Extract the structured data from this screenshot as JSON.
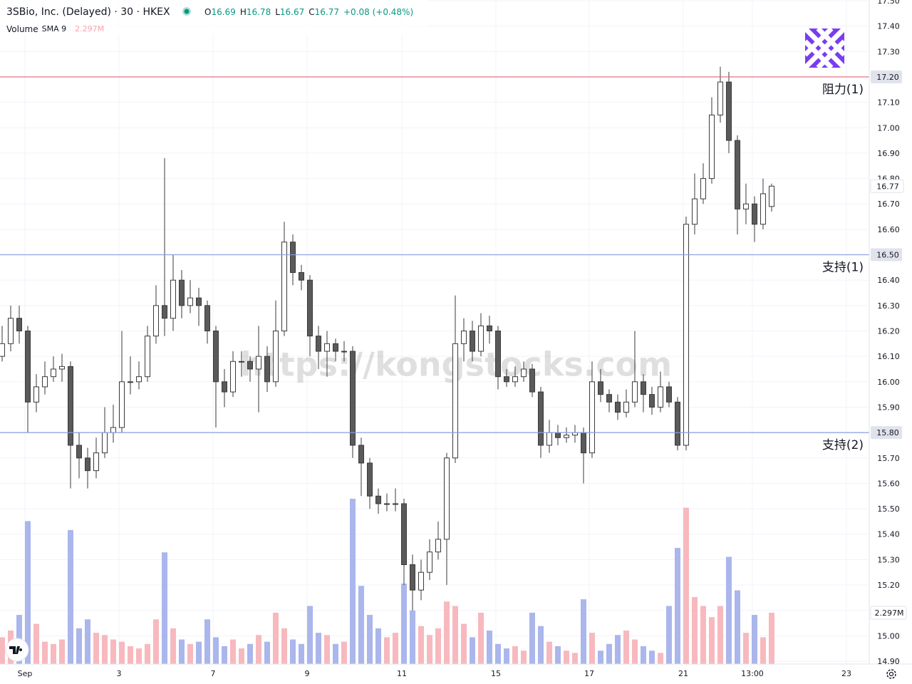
{
  "chart_data": {
    "type": "candlestick",
    "title": "3SBio, Inc. (Delayed) · 30 · HKEX",
    "ohlc_prefixes": [
      "O",
      "H",
      "L",
      "C"
    ],
    "change": "+0.08 (+0.48%)",
    "volume_title": "Volume",
    "volume_sma": "SMA 9",
    "volume_last": {
      "value": 2297000,
      "label": "2.297M"
    },
    "watermark": "https://kongstocks.com",
    "open": [
      16.1,
      16.15,
      16.25,
      16.2,
      15.92,
      15.98,
      16.02,
      16.05,
      16.06,
      15.75,
      15.7,
      15.65,
      15.72,
      15.8,
      15.82,
      16.0,
      16.0,
      16.02,
      16.18,
      16.3,
      16.25,
      16.4,
      16.3,
      16.33,
      16.3,
      16.2,
      16.0,
      15.96,
      16.08,
      16.08,
      16.05,
      16.1,
      16.0,
      16.2,
      16.55,
      16.43,
      16.4,
      16.18,
      16.12,
      16.15,
      16.12,
      16.12,
      15.75,
      15.68,
      15.55,
      15.52,
      15.52,
      15.52,
      15.28,
      15.18,
      15.25,
      15.33,
      15.38,
      15.7,
      16.15,
      16.2,
      16.12,
      16.22,
      16.2,
      16.02,
      16.0,
      16.02,
      16.05,
      15.96,
      15.75,
      15.8,
      15.78,
      15.79,
      15.8,
      15.72,
      16.0,
      15.95,
      15.92,
      15.88,
      15.92,
      16.0,
      15.95,
      15.9,
      15.98,
      15.92,
      15.75,
      16.62,
      16.72,
      16.8,
      17.05,
      17.18,
      16.95,
      16.68,
      16.7,
      16.62,
      16.69
    ],
    "high": [
      16.22,
      16.3,
      16.3,
      16.22,
      16.03,
      16.08,
      16.1,
      16.11,
      16.08,
      15.8,
      15.74,
      15.78,
      15.9,
      15.91,
      16.2,
      16.1,
      16.08,
      16.22,
      16.38,
      16.88,
      16.5,
      16.44,
      16.4,
      16.37,
      16.32,
      16.22,
      16.05,
      16.12,
      16.12,
      16.1,
      16.22,
      16.14,
      16.32,
      16.63,
      16.58,
      16.46,
      16.42,
      16.22,
      16.2,
      16.17,
      16.16,
      16.14,
      15.78,
      15.7,
      15.58,
      15.56,
      15.58,
      15.54,
      15.32,
      15.3,
      15.38,
      15.45,
      15.72,
      16.34,
      16.25,
      16.24,
      16.27,
      16.26,
      16.22,
      16.05,
      16.06,
      16.08,
      16.07,
      15.98,
      15.85,
      15.83,
      15.82,
      15.83,
      15.82,
      16.08,
      16.05,
      15.97,
      15.95,
      15.97,
      16.2,
      16.03,
      15.98,
      16.04,
      16.0,
      15.94,
      16.65,
      16.82,
      16.86,
      17.12,
      17.24,
      17.22,
      16.97,
      16.78,
      16.73,
      16.8,
      16.78
    ],
    "low": [
      16.08,
      16.12,
      16.15,
      15.8,
      15.88,
      15.95,
      16.0,
      16.0,
      15.58,
      15.62,
      15.58,
      15.62,
      15.7,
      15.76,
      15.8,
      15.95,
      15.97,
      16.0,
      16.15,
      16.18,
      16.2,
      16.25,
      16.27,
      16.22,
      16.15,
      15.82,
      15.9,
      15.94,
      16.02,
      16.0,
      15.88,
      15.96,
      15.98,
      16.18,
      16.38,
      16.36,
      16.1,
      16.05,
      16.02,
      16.08,
      16.08,
      15.7,
      15.55,
      15.5,
      15.48,
      15.49,
      15.49,
      15.2,
      15.1,
      15.14,
      15.22,
      15.3,
      15.2,
      15.68,
      16.08,
      16.08,
      16.1,
      16.15,
      15.97,
      15.98,
      15.98,
      16.0,
      15.94,
      15.7,
      15.72,
      15.75,
      15.76,
      15.76,
      15.6,
      15.7,
      15.92,
      15.88,
      15.85,
      15.86,
      15.9,
      15.88,
      15.87,
      15.88,
      15.9,
      15.73,
      15.73,
      16.58,
      16.7,
      16.78,
      17.02,
      16.9,
      16.58,
      16.62,
      16.55,
      16.6,
      16.67
    ],
    "close": [
      16.15,
      16.25,
      16.2,
      15.92,
      15.98,
      16.02,
      16.05,
      16.06,
      15.75,
      15.7,
      15.65,
      15.72,
      15.8,
      15.82,
      16.0,
      16.0,
      16.02,
      16.18,
      16.3,
      16.25,
      16.4,
      16.3,
      16.33,
      16.3,
      16.2,
      16.0,
      15.96,
      16.08,
      16.08,
      16.05,
      16.1,
      16.0,
      16.2,
      16.55,
      16.43,
      16.4,
      16.18,
      16.12,
      16.15,
      16.12,
      16.12,
      15.75,
      15.68,
      15.55,
      15.52,
      15.52,
      15.52,
      15.28,
      15.18,
      15.25,
      15.33,
      15.38,
      15.7,
      16.15,
      16.2,
      16.12,
      16.22,
      16.2,
      16.02,
      16.0,
      16.02,
      16.05,
      15.96,
      15.75,
      15.8,
      15.78,
      15.79,
      15.8,
      15.72,
      16.0,
      15.95,
      15.92,
      15.88,
      15.92,
      16.0,
      15.95,
      15.9,
      15.98,
      15.92,
      15.75,
      16.62,
      16.72,
      16.8,
      17.05,
      17.18,
      16.95,
      16.68,
      16.7,
      16.62,
      16.74,
      16.77
    ],
    "volume": [
      1200000,
      1500000,
      2200000,
      6400000,
      1800000,
      1000000,
      900000,
      1100000,
      6000000,
      1600000,
      2000000,
      1400000,
      1300000,
      1100000,
      1000000,
      800000,
      700000,
      900000,
      2000000,
      5000000,
      1600000,
      1100000,
      900000,
      1000000,
      2000000,
      1200000,
      800000,
      1100000,
      700000,
      900000,
      1300000,
      1000000,
      2300000,
      1600000,
      1100000,
      900000,
      2600000,
      1400000,
      1300000,
      900000,
      1000000,
      7400000,
      3500000,
      2200000,
      1600000,
      1200000,
      1400000,
      3600000,
      2400000,
      1700000,
      1300000,
      1600000,
      2800000,
      2600000,
      1800000,
      1200000,
      2300000,
      1500000,
      900000,
      700000,
      800000,
      600000,
      2300000,
      1700000,
      1000000,
      800000,
      600000,
      500000,
      2900000,
      1400000,
      600000,
      900000,
      1300000,
      1500000,
      1100000,
      800000,
      600000,
      500000,
      2600000,
      5200000,
      7000000,
      3000000,
      2600000,
      2100000,
      2600000,
      4800000,
      3300000,
      1400000,
      2200000,
      1200000,
      2297000
    ],
    "up_color": "#ffffff",
    "down_color": "#5a5a5a",
    "wick_color": "#3a3a3a",
    "volume_up_color": "#f7b9be",
    "volume_down_color": "#aab6ec",
    "grid": true,
    "xlim": [
      -0.25,
      101.42
    ],
    "xticks": [
      {
        "value": 2.67,
        "label": "Sep"
      },
      {
        "value": 13.67,
        "label": "3"
      },
      {
        "value": 24.67,
        "label": "7"
      },
      {
        "value": 35.67,
        "label": "9"
      },
      {
        "value": 46.75,
        "label": "11"
      },
      {
        "value": 57.75,
        "label": "15"
      },
      {
        "value": 68.67,
        "label": "17"
      },
      {
        "value": 79.67,
        "label": "21"
      },
      {
        "value": 87.75,
        "label": "13:00"
      },
      {
        "value": 98.75,
        "label": "23"
      }
    ],
    "ylim": [
      14.9,
      17.5
    ],
    "yticks": [
      {
        "value": 14.9,
        "label": "14.90"
      },
      {
        "value": 15.0,
        "label": "15.00"
      },
      {
        "value": 15.1,
        "label": "15.10"
      },
      {
        "value": 15.2,
        "label": "15.20"
      },
      {
        "value": 15.3,
        "label": "15.30"
      },
      {
        "value": 15.4,
        "label": "15.40"
      },
      {
        "value": 15.5,
        "label": "15.50"
      },
      {
        "value": 15.6,
        "label": "15.60"
      },
      {
        "value": 15.7,
        "label": "15.70"
      },
      {
        "value": 15.8,
        "label": "15.80"
      },
      {
        "value": 15.9,
        "label": "15.90"
      },
      {
        "value": 16.0,
        "label": "16.00"
      },
      {
        "value": 16.1,
        "label": "16.10"
      },
      {
        "value": 16.2,
        "label": "16.20"
      },
      {
        "value": 16.3,
        "label": "16.30"
      },
      {
        "value": 16.4,
        "label": "16.40"
      },
      {
        "value": 16.5,
        "label": "16.50"
      },
      {
        "value": 16.6,
        "label": "16.60"
      },
      {
        "value": 16.7,
        "label": "16.70"
      },
      {
        "value": 16.8,
        "label": "16.80"
      },
      {
        "value": 16.9,
        "label": "16.90"
      },
      {
        "value": 17.0,
        "label": "17.00"
      },
      {
        "value": 17.1,
        "label": "17.10"
      },
      {
        "value": 17.2,
        "label": "17.20"
      },
      {
        "value": 17.3,
        "label": "17.30"
      },
      {
        "value": 17.4,
        "label": "17.40"
      },
      {
        "value": 17.5,
        "label": "17.50"
      }
    ],
    "levels": [
      {
        "value": 17.2,
        "label": "17.20",
        "name": "阻力(1)",
        "color": "#e0607e"
      },
      {
        "value": 16.5,
        "label": "16.50",
        "name": "支持(1)",
        "color": "#8a9be0"
      },
      {
        "value": 15.8,
        "label": "15.80",
        "name": "支持(2)",
        "color": "#8a9be0"
      }
    ]
  }
}
